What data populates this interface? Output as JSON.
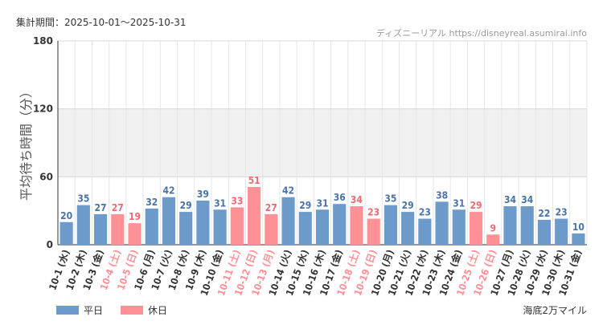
{
  "header": {
    "period_label": "集計期間：2025-10-01～2025-10-31",
    "source": "ディズニーリアル https://disneyreal.asumirai.info"
  },
  "footer": {
    "attraction": "海底2万マイル"
  },
  "colors": {
    "weekday": "#6b9acb",
    "holiday": "#ff9096",
    "weekday_label": "#4a74a8",
    "holiday_label": "#ee6b74",
    "band": "#f0f0f0"
  },
  "chart_data": {
    "type": "bar",
    "title": "",
    "ylabel": "平均待ち時間（分）",
    "xlabel": "",
    "ylim": [
      0,
      180
    ],
    "yticks": [
      "0",
      "60",
      "120",
      "180"
    ],
    "categories": [
      "10-1 (水)",
      "10-2 (木)",
      "10-3 (金)",
      "10-4 (土)",
      "10-5 (日)",
      "10-6 (月)",
      "10-7 (火)",
      "10-8 (水)",
      "10-9 (木)",
      "10-10 (金)",
      "10-11 (土)",
      "10-12 (日)",
      "10-13 (月)",
      "10-14 (火)",
      "10-15 (水)",
      "10-16 (木)",
      "10-17 (金)",
      "10-18 (土)",
      "10-19 (日)",
      "10-20 (月)",
      "10-21 (火)",
      "10-22 (水)",
      "10-23 (木)",
      "10-24 (金)",
      "10-25 (土)",
      "10-26 (日)",
      "10-27 (月)",
      "10-28 (火)",
      "10-29 (水)",
      "10-30 (木)",
      "10-31 (金)"
    ],
    "values": [
      20,
      35,
      27,
      27,
      19,
      32,
      42,
      29,
      39,
      31,
      33,
      51,
      27,
      42,
      29,
      31,
      36,
      34,
      23,
      35,
      29,
      23,
      38,
      31,
      29,
      9,
      34,
      34,
      22,
      23,
      10
    ],
    "day_types": [
      "weekday",
      "weekday",
      "weekday",
      "holiday",
      "holiday",
      "weekday",
      "weekday",
      "weekday",
      "weekday",
      "weekday",
      "holiday",
      "holiday",
      "holiday",
      "weekday",
      "weekday",
      "weekday",
      "weekday",
      "holiday",
      "holiday",
      "weekday",
      "weekday",
      "weekday",
      "weekday",
      "weekday",
      "holiday",
      "holiday",
      "weekday",
      "weekday",
      "weekday",
      "weekday",
      "weekday"
    ],
    "legend": [
      {
        "key": "weekday",
        "label": "平日"
      },
      {
        "key": "holiday",
        "label": "休日"
      }
    ],
    "grid": true,
    "shaded_band": [
      60,
      120
    ]
  }
}
